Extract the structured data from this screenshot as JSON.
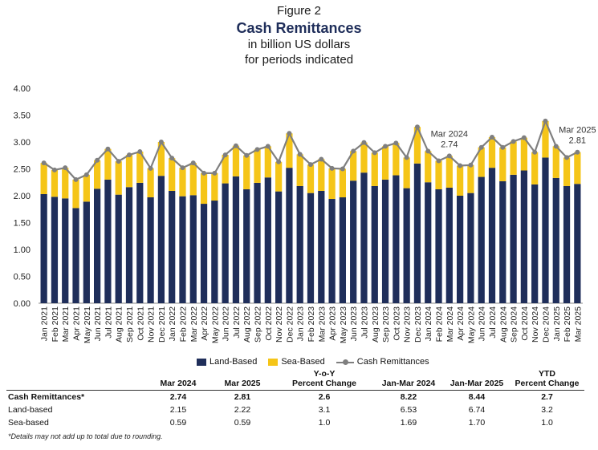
{
  "figure": {
    "label": "Figure 2",
    "title": "Cash Remittances",
    "subtitle1": "in billion US dollars",
    "subtitle2": "for periods indicated"
  },
  "colors": {
    "land": "#1f2e5a",
    "sea": "#f5c518",
    "line": "#7f7f7f",
    "title": "#1f2e5a"
  },
  "chart_data": {
    "type": "bar",
    "stacked": true,
    "ylim": [
      0,
      4.0
    ],
    "yticks": [
      "0.00",
      "0.50",
      "1.00",
      "1.50",
      "2.00",
      "2.50",
      "3.00",
      "3.50",
      "4.00"
    ],
    "grid": false,
    "legend_position": "bottom",
    "categories": [
      "Jan 2021",
      "Feb 2021",
      "Mar 2021",
      "Apr 2021",
      "May 2021",
      "Jun 2021",
      "Jul 2021",
      "Aug 2021",
      "Sep 2021",
      "Oct 2021",
      "Nov 2021",
      "Dec 2021",
      "Jan 2022",
      "Feb 2022",
      "Mar 2022",
      "Apr 2022",
      "May 2022",
      "Jun 2022",
      "Jul 2022",
      "Aug 2022",
      "Sep 2022",
      "Oct 2022",
      "Nov 2022",
      "Dec 2022",
      "Jan 2023",
      "Feb 2023",
      "Mar 2023",
      "Apr 2023",
      "May 2023",
      "Jun 2023",
      "Jul 2023",
      "Aug 2023",
      "Sep 2023",
      "Oct 2023",
      "Nov 2023",
      "Dec 2023",
      "Jan 2024",
      "Feb 2024",
      "Mar 2024",
      "Apr 2024",
      "May 2024",
      "Jun 2024",
      "Jul 2024",
      "Aug 2024",
      "Sep 2024",
      "Oct 2024",
      "Nov 2024",
      "Dec 2024",
      "Jan 2025",
      "Feb 2025",
      "Mar 2025"
    ],
    "series": [
      {
        "name": "Land-Based",
        "type": "bar",
        "values": [
          2.03,
          1.98,
          1.95,
          1.77,
          1.89,
          2.13,
          2.3,
          2.02,
          2.16,
          2.24,
          1.97,
          2.37,
          2.09,
          1.99,
          2.01,
          1.85,
          1.91,
          2.23,
          2.36,
          2.12,
          2.24,
          2.34,
          2.08,
          2.52,
          2.18,
          2.05,
          2.09,
          1.94,
          1.97,
          2.28,
          2.43,
          2.18,
          2.3,
          2.38,
          2.14,
          2.6,
          2.25,
          2.12,
          2.15,
          2.0,
          2.05,
          2.35,
          2.52,
          2.27,
          2.39,
          2.47,
          2.21,
          2.71,
          2.33,
          2.18,
          2.22
        ]
      },
      {
        "name": "Sea-Based",
        "type": "bar",
        "values": [
          0.58,
          0.5,
          0.57,
          0.53,
          0.5,
          0.53,
          0.57,
          0.62,
          0.6,
          0.58,
          0.54,
          0.63,
          0.61,
          0.53,
          0.6,
          0.57,
          0.51,
          0.53,
          0.57,
          0.63,
          0.62,
          0.58,
          0.55,
          0.64,
          0.59,
          0.53,
          0.59,
          0.57,
          0.53,
          0.55,
          0.56,
          0.62,
          0.62,
          0.6,
          0.57,
          0.68,
          0.58,
          0.53,
          0.59,
          0.56,
          0.52,
          0.55,
          0.57,
          0.63,
          0.62,
          0.61,
          0.6,
          0.68,
          0.59,
          0.53,
          0.59
        ]
      },
      {
        "name": "Cash Remittances",
        "type": "line",
        "values": [
          2.61,
          2.48,
          2.52,
          2.3,
          2.39,
          2.66,
          2.87,
          2.64,
          2.76,
          2.82,
          2.51,
          3.0,
          2.7,
          2.52,
          2.61,
          2.42,
          2.42,
          2.76,
          2.93,
          2.75,
          2.86,
          2.92,
          2.63,
          3.16,
          2.77,
          2.58,
          2.68,
          2.51,
          2.5,
          2.83,
          2.99,
          2.8,
          2.92,
          2.98,
          2.71,
          3.28,
          2.83,
          2.65,
          2.74,
          2.56,
          2.57,
          2.9,
          3.09,
          2.9,
          3.01,
          3.08,
          2.81,
          3.39,
          2.92,
          2.71,
          2.81
        ]
      }
    ],
    "annotations": [
      {
        "category": "Mar 2024",
        "label": "Mar 2024",
        "value": "2.74"
      },
      {
        "category": "Mar 2025",
        "label": "Mar 2025",
        "value": "2.81"
      }
    ]
  },
  "legend": {
    "land": "Land-Based",
    "sea": "Sea-Based",
    "line": "Cash Remittances"
  },
  "table": {
    "headers": [
      "",
      "Mar 2024",
      "Mar 2025",
      "Y-o-Y\nPercent Change",
      "Jan-Mar 2024",
      "Jan-Mar 2025",
      "YTD\nPercent Change"
    ],
    "rows": [
      [
        "Cash Remittances*",
        "2.74",
        "2.81",
        "2.6",
        "8.22",
        "8.44",
        "2.7"
      ],
      [
        "Land-based",
        "2.15",
        "2.22",
        "3.1",
        "6.53",
        "6.74",
        "3.2"
      ],
      [
        "Sea-based",
        "0.59",
        "0.59",
        "1.0",
        "1.69",
        "1.70",
        "1.0"
      ]
    ]
  },
  "footnote": "*Details may not add up to total due to rounding."
}
